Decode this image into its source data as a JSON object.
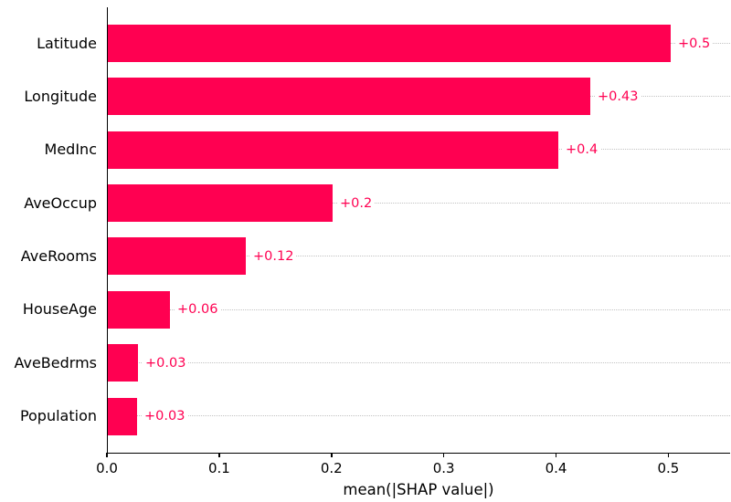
{
  "chart_data": {
    "type": "bar",
    "orientation": "horizontal",
    "title": "",
    "categories": [
      "Latitude",
      "Longitude",
      "MedInc",
      "AveOccup",
      "AveRooms",
      "HouseAge",
      "AveBedrms",
      "Population"
    ],
    "values": [
      0.501,
      0.43,
      0.401,
      0.2,
      0.123,
      0.055,
      0.027,
      0.026
    ],
    "bar_labels": [
      "+0.5",
      "+0.43",
      "+0.4",
      "+0.2",
      "+0.12",
      "+0.06",
      "+0.03",
      "+0.03"
    ],
    "xlabel": "mean(|SHAP value|)",
    "xticks": [
      0.0,
      0.1,
      0.2,
      0.3,
      0.4,
      0.5
    ],
    "xtick_labels": [
      "0.0",
      "0.1",
      "0.2",
      "0.3",
      "0.4",
      "0.5"
    ],
    "xlim": [
      0,
      0.555
    ],
    "ylim_rows": 8,
    "grid": "horizontal dotted line per bar row, behind bars",
    "legend": "none",
    "colors": {
      "bar": "#ff0051",
      "value_label": "#ff0051",
      "gridline": "#c2c2c2",
      "axis": "#000000",
      "text": "#000000",
      "background": "#ffffff"
    }
  }
}
